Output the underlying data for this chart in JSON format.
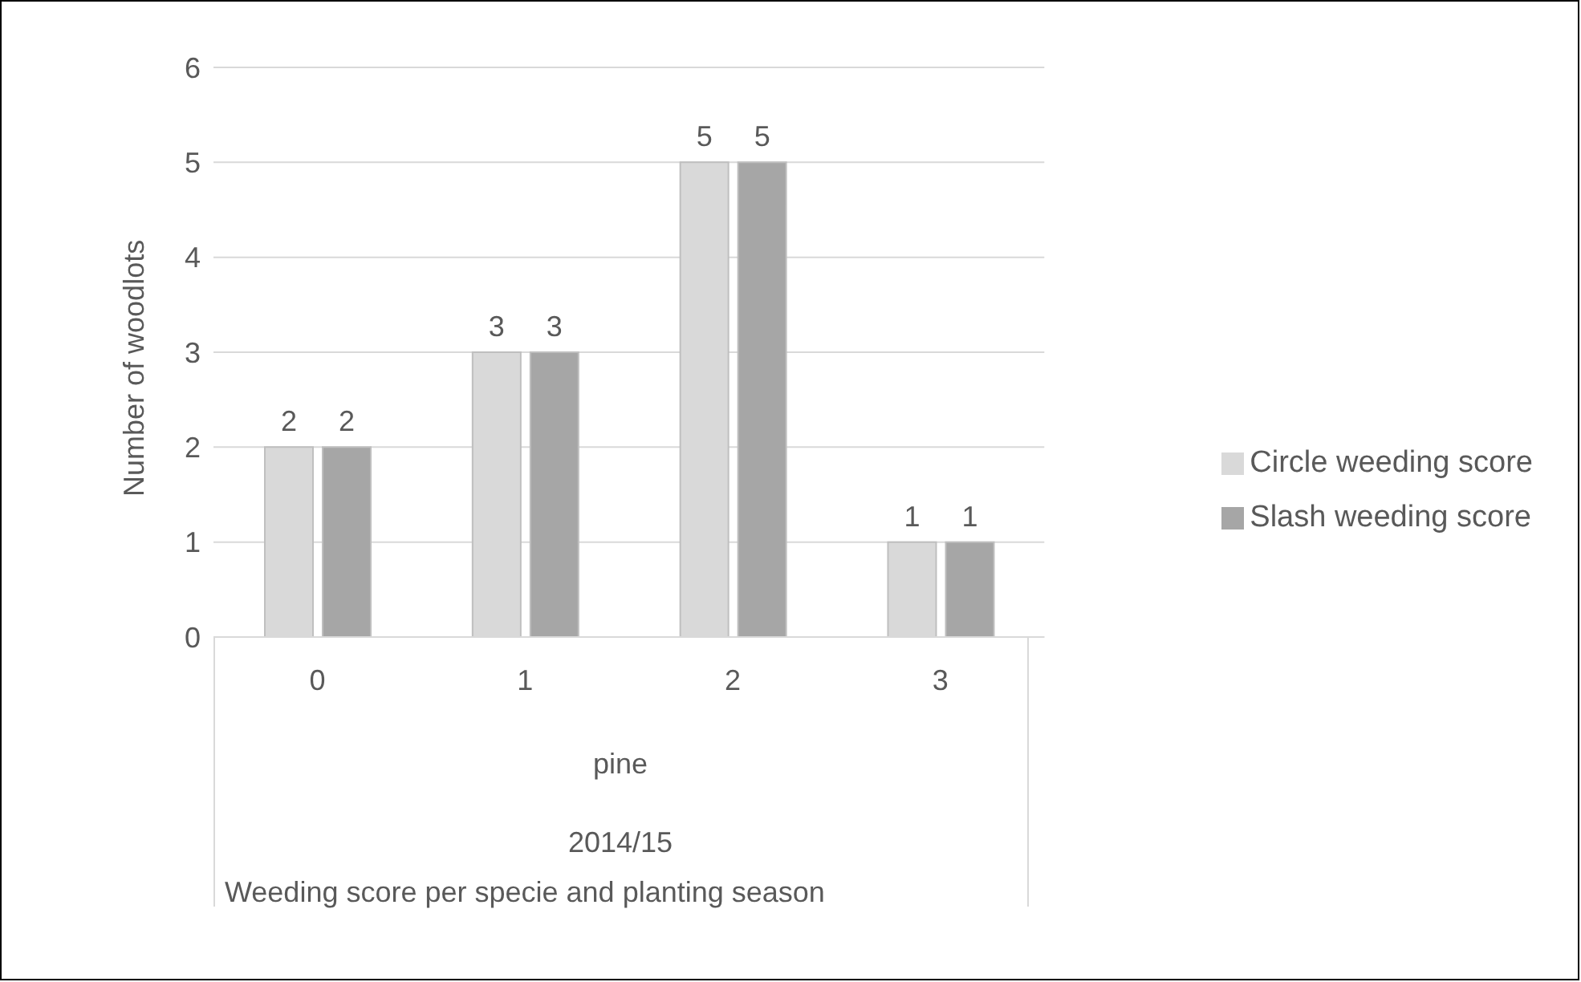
{
  "chart_data": {
    "type": "bar",
    "ylabel": "Number of woodlots",
    "categories": [
      "0",
      "1",
      "2",
      "3"
    ],
    "series": [
      {
        "name": "Circle weeding score",
        "color": "#d9d9d9",
        "values": [
          2,
          3,
          5,
          1
        ]
      },
      {
        "name": "Slash weeding score",
        "color": "#a6a6a6",
        "values": [
          2,
          3,
          5,
          1
        ]
      }
    ],
    "annotations": [
      "pine",
      "2014/15",
      "Weeding score per specie and planting season"
    ],
    "ylim": [
      0,
      6
    ],
    "yticks": [
      0,
      1,
      2,
      3,
      4,
      5,
      6
    ],
    "grid": "y",
    "legend": "right",
    "data_labels": true
  }
}
